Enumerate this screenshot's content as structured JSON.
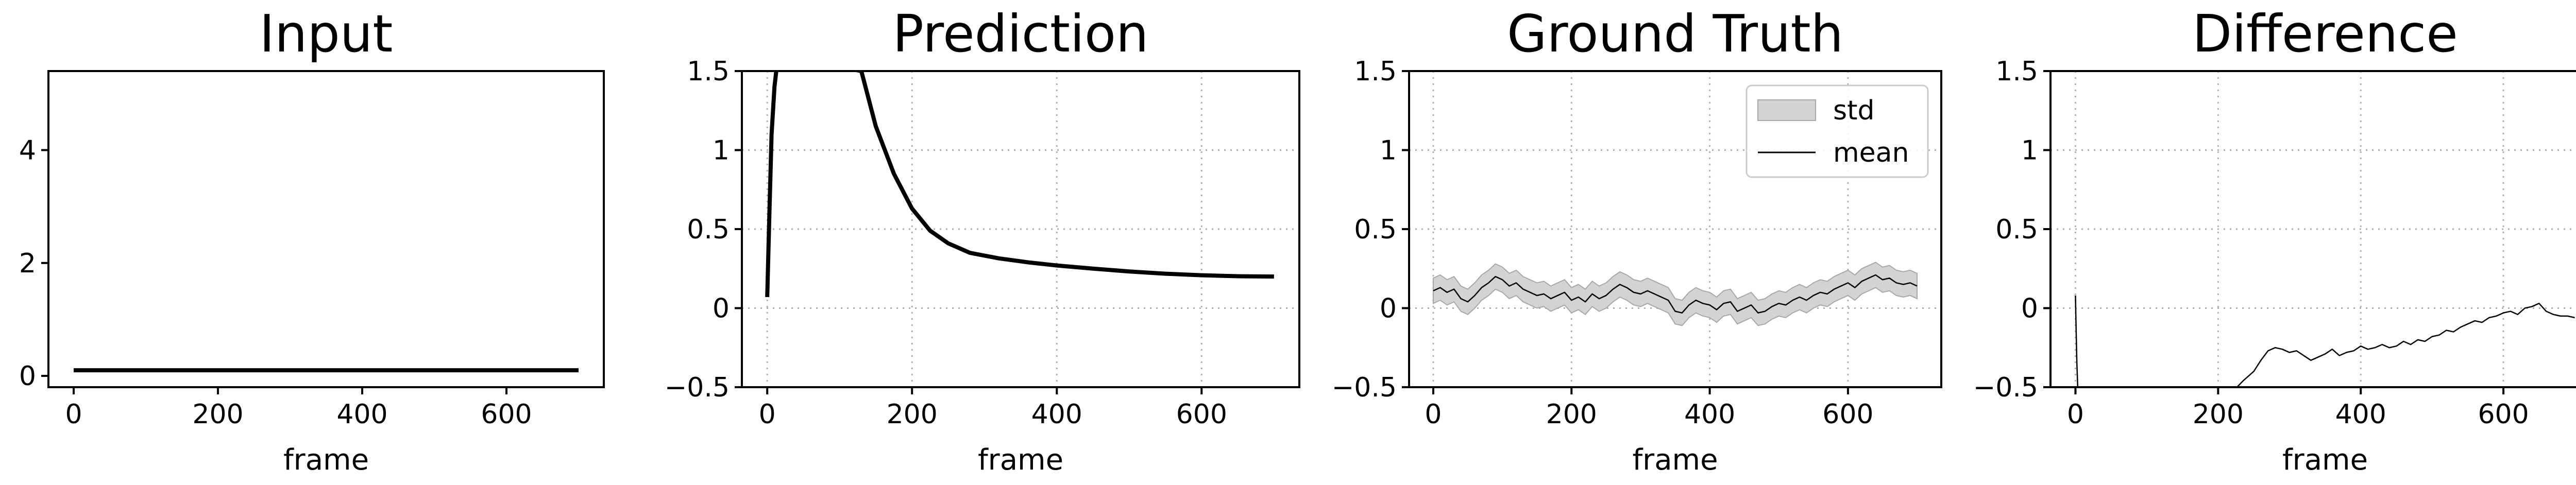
{
  "chart_data": [
    {
      "type": "line",
      "title": "Input",
      "xlabel": "frame",
      "ylabel": "",
      "xlim": [
        -35,
        735
      ],
      "ylim": [
        -0.2,
        5.4
      ],
      "xticks": [
        0,
        200,
        400,
        600
      ],
      "yticks": [
        0,
        2,
        4
      ],
      "grid": false,
      "series": [
        {
          "x": [
            0,
            700
          ],
          "y": [
            0.1,
            0.1
          ]
        }
      ]
    },
    {
      "type": "line",
      "title": "Prediction",
      "xlabel": "frame",
      "ylabel": "",
      "xlim": [
        -35,
        735
      ],
      "ylim": [
        -0.5,
        1.5
      ],
      "xticks": [
        0,
        200,
        400,
        600
      ],
      "yticks": [
        -0.5,
        0.0,
        0.5,
        1.0,
        1.5
      ],
      "grid": true,
      "series": [
        {
          "x": [
            0,
            3,
            6,
            10,
            15,
            130,
            150,
            175,
            200,
            225,
            250,
            280,
            320,
            360,
            400,
            450,
            500,
            550,
            600,
            650,
            700
          ],
          "y": [
            0.07,
            0.6,
            1.1,
            1.4,
            1.6,
            1.5,
            1.15,
            0.85,
            0.63,
            0.49,
            0.41,
            0.35,
            0.315,
            0.29,
            0.27,
            0.25,
            0.232,
            0.218,
            0.208,
            0.202,
            0.2
          ]
        }
      ]
    },
    {
      "type": "line",
      "title": "Ground Truth",
      "xlabel": "frame",
      "ylabel": "",
      "xlim": [
        -35,
        735
      ],
      "ylim": [
        -0.5,
        1.5
      ],
      "xticks": [
        0,
        200,
        400,
        600
      ],
      "yticks": [
        -0.5,
        0.0,
        0.5,
        1.0,
        1.5
      ],
      "grid": true,
      "legend": {
        "position": "top-right",
        "entries": [
          "std",
          "mean"
        ]
      },
      "series": [
        {
          "name": "mean",
          "x": [
            0,
            10,
            20,
            30,
            40,
            50,
            60,
            70,
            80,
            90,
            100,
            110,
            120,
            130,
            140,
            150,
            160,
            170,
            180,
            190,
            200,
            210,
            220,
            230,
            240,
            250,
            260,
            270,
            280,
            290,
            300,
            310,
            320,
            330,
            340,
            350,
            360,
            370,
            380,
            390,
            400,
            410,
            420,
            430,
            440,
            450,
            460,
            470,
            480,
            490,
            500,
            510,
            520,
            530,
            540,
            550,
            560,
            570,
            580,
            590,
            600,
            610,
            620,
            630,
            640,
            650,
            660,
            670,
            680,
            690,
            700
          ],
          "y": [
            0.11,
            0.13,
            0.1,
            0.12,
            0.06,
            0.04,
            0.08,
            0.13,
            0.16,
            0.2,
            0.18,
            0.14,
            0.16,
            0.12,
            0.1,
            0.08,
            0.09,
            0.06,
            0.08,
            0.1,
            0.05,
            0.07,
            0.04,
            0.09,
            0.06,
            0.08,
            0.12,
            0.15,
            0.13,
            0.1,
            0.09,
            0.11,
            0.09,
            0.07,
            0.05,
            -0.02,
            -0.03,
            0.02,
            0.05,
            0.03,
            0.02,
            -0.01,
            0.03,
            0.04,
            -0.02,
            0.0,
            0.02,
            -0.03,
            -0.02,
            0.01,
            0.03,
            0.02,
            0.05,
            0.07,
            0.05,
            0.08,
            0.1,
            0.09,
            0.12,
            0.14,
            0.16,
            0.13,
            0.17,
            0.19,
            0.21,
            0.18,
            0.19,
            0.16,
            0.15,
            0.16,
            0.14
          ]
        },
        {
          "name": "std",
          "band_halfwidth": 0.08
        }
      ]
    },
    {
      "type": "line",
      "title": "Difference",
      "xlabel": "frame",
      "ylabel": "",
      "xlim": [
        -35,
        735
      ],
      "ylim": [
        -0.5,
        1.5
      ],
      "xticks": [
        0,
        200,
        400,
        600
      ],
      "yticks": [
        -0.5,
        0.0,
        0.5,
        1.0,
        1.5
      ],
      "grid": true,
      "series": [
        {
          "x": [
            0,
            1,
            2,
            3,
            4
          ],
          "y": [
            0.08,
            -0.15,
            -0.35,
            -0.48,
            -0.6
          ]
        },
        {
          "x": [
            220,
            235,
            250,
            260,
            270,
            280,
            290,
            300,
            310,
            320,
            330,
            340,
            350,
            360,
            370,
            380,
            390,
            400,
            410,
            420,
            430,
            440,
            450,
            460,
            470,
            480,
            490,
            500,
            510,
            520,
            530,
            540,
            550,
            560,
            570,
            580,
            590,
            600,
            610,
            620,
            630,
            640,
            650,
            660,
            670,
            680,
            690,
            700
          ],
          "y": [
            -0.53,
            -0.46,
            -0.4,
            -0.33,
            -0.27,
            -0.25,
            -0.26,
            -0.28,
            -0.27,
            -0.3,
            -0.33,
            -0.31,
            -0.29,
            -0.26,
            -0.3,
            -0.28,
            -0.27,
            -0.24,
            -0.26,
            -0.25,
            -0.23,
            -0.25,
            -0.24,
            -0.21,
            -0.23,
            -0.2,
            -0.21,
            -0.18,
            -0.17,
            -0.14,
            -0.15,
            -0.12,
            -0.1,
            -0.08,
            -0.09,
            -0.06,
            -0.05,
            -0.03,
            -0.02,
            -0.04,
            0.0,
            0.01,
            0.03,
            -0.02,
            -0.04,
            -0.05,
            -0.05,
            -0.06
          ]
        }
      ]
    }
  ]
}
